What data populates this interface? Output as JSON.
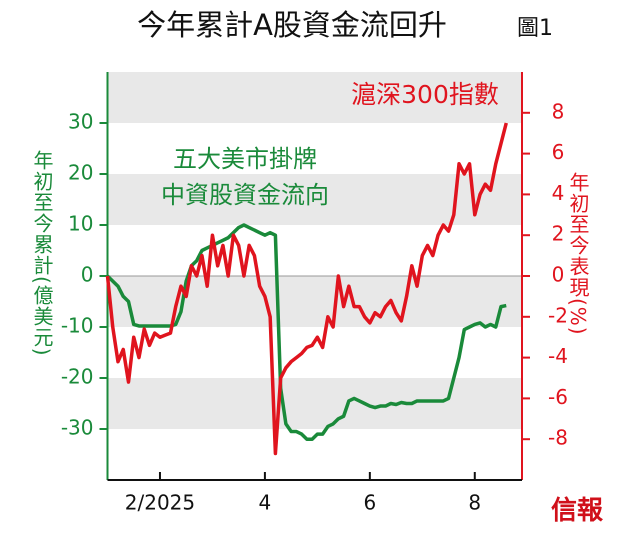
{
  "chart_data": {
    "type": "line",
    "title": "今年累計A股資金流回升",
    "figure_label": "圖1",
    "ylabel": "年初至今累計(億美元)",
    "y2label": "年初至今表現(%)",
    "source_logo": "信報",
    "x": [
      1.0,
      1.1,
      1.2,
      1.3,
      1.4,
      1.5,
      1.6,
      1.7,
      1.8,
      1.9,
      2.0,
      2.1,
      2.2,
      2.3,
      2.4,
      2.5,
      2.6,
      2.7,
      2.8,
      2.9,
      3.0,
      3.1,
      3.2,
      3.3,
      3.4,
      3.5,
      3.6,
      3.7,
      3.8,
      3.9,
      4.0,
      4.1,
      4.2,
      4.3,
      4.4,
      4.5,
      4.6,
      4.7,
      4.8,
      4.9,
      5.0,
      5.1,
      5.2,
      5.3,
      5.4,
      5.5,
      5.6,
      5.7,
      5.8,
      5.9,
      6.0,
      6.1,
      6.2,
      6.3,
      6.4,
      6.5,
      6.6,
      6.7,
      6.8,
      6.9,
      7.0,
      7.1,
      7.2,
      7.3,
      7.4,
      7.5,
      7.6,
      7.7,
      7.8,
      7.9,
      8.0,
      8.1,
      8.2,
      8.3,
      8.4,
      8.5,
      8.6
    ],
    "xlim": [
      1,
      8.9
    ],
    "xticks": [
      {
        "value": 2,
        "label": "2/2025"
      },
      4,
      6,
      8
    ],
    "ylim": [
      -40,
      40
    ],
    "yticks": [
      -30,
      -20,
      -10,
      0,
      10,
      20,
      30
    ],
    "y2lim": [
      -10,
      10
    ],
    "y2ticks": [
      -8,
      -6,
      -4,
      -2,
      0,
      2,
      4,
      6,
      8
    ],
    "bands": true,
    "series": [
      {
        "name": [
          "五大美市掛牌",
          "中資股資金流向"
        ],
        "color": "#1a8a3a",
        "values": [
          0,
          -1,
          -2,
          -4,
          -5,
          -9.5,
          -9.8,
          -9.8,
          -9.8,
          -9.8,
          -9.8,
          -9.8,
          -9.8,
          -9.5,
          -7,
          -1,
          2,
          3,
          5,
          5.5,
          6,
          6.5,
          7,
          7.5,
          8.5,
          9.5,
          10,
          9.5,
          9,
          8.5,
          8,
          8.5,
          8,
          -22,
          -29,
          -30.5,
          -30.5,
          -31,
          -32,
          -32,
          -31,
          -31,
          -29.5,
          -29,
          -28,
          -27.5,
          -24.5,
          -24,
          -24.5,
          -25,
          -25.5,
          -25.8,
          -25.5,
          -25.5,
          -25,
          -25.2,
          -24.8,
          -25,
          -25,
          -24.5,
          -24.5,
          -24.5,
          -24.5,
          -24.5,
          -24.5,
          -24,
          -20,
          -16,
          -10.5,
          -10,
          -9.5,
          -9.2,
          -10,
          -9.5,
          -10,
          -6,
          -5.8
        ]
      },
      {
        "name": "滬深300指數",
        "color": "#e0141e",
        "axis": "y2",
        "values": [
          0,
          -2.5,
          -4.2,
          -3.6,
          -5.2,
          -3,
          -4,
          -2.6,
          -3.4,
          -2.8,
          -3,
          -2.9,
          -2.8,
          -1.5,
          -0.5,
          -1,
          0.5,
          0,
          1,
          -0.5,
          2,
          0.5,
          1.5,
          0,
          2,
          1.5,
          0,
          1.5,
          1,
          -0.5,
          -1,
          -2,
          -8.7,
          -5,
          -4.5,
          -4.2,
          -4,
          -3.8,
          -3.5,
          -3.4,
          -3,
          -3.5,
          -2,
          -2.5,
          0,
          -1.5,
          -0.5,
          -1.5,
          -1.5,
          -2,
          -2.3,
          -1.8,
          -2,
          -1.5,
          -1.2,
          -1.8,
          -2.2,
          -1,
          0.5,
          -0.5,
          1,
          1.5,
          1,
          2,
          2.5,
          2.2,
          3,
          5.5,
          5,
          5.5,
          3,
          4,
          4.5,
          4.2,
          5.5,
          6.5,
          7.5
        ]
      }
    ]
  }
}
